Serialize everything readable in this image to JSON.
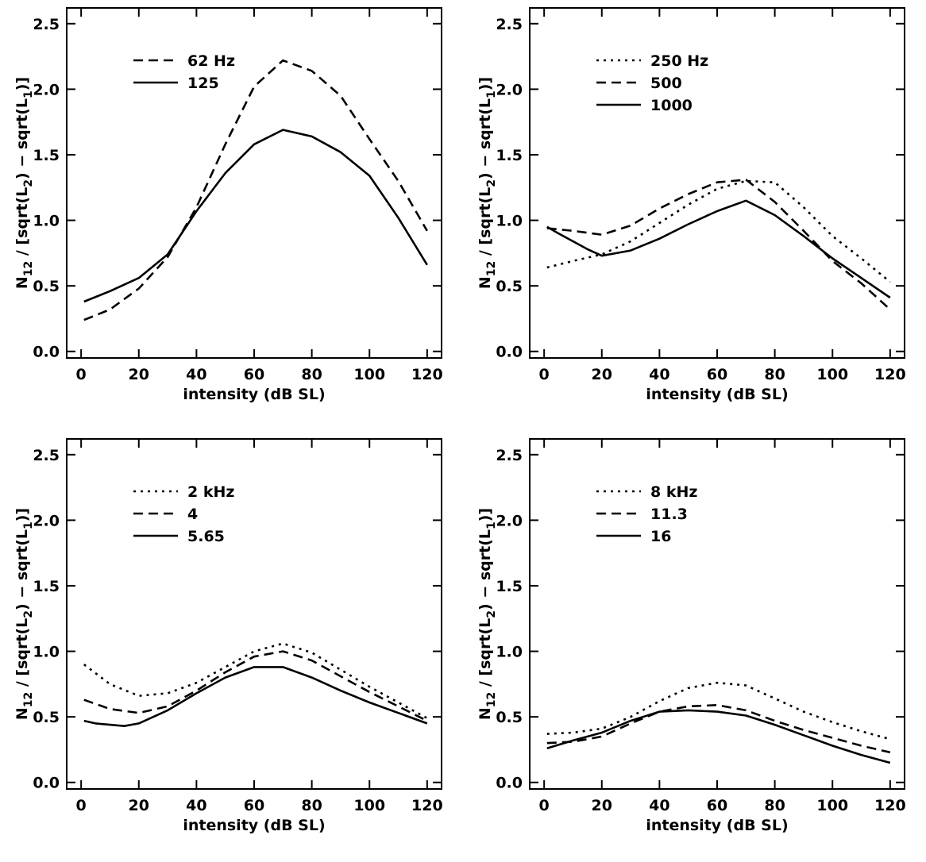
{
  "chart_data": [
    {
      "type": "line",
      "xlabel": "intensity (dB SL)",
      "ylabel_parts": [
        "N",
        "12",
        " / [sqrt(L",
        "2",
        ") − sqrt(L",
        "1",
        ")]"
      ],
      "xlim": [
        -5,
        125
      ],
      "ylim": [
        -0.05,
        2.62
      ],
      "xticks": [
        0,
        20,
        40,
        60,
        80,
        100,
        120
      ],
      "yticks": [
        0.0,
        0.5,
        1.0,
        1.5,
        2.0,
        2.5
      ],
      "yticklabels": [
        "0.0",
        "0.5",
        "1.0",
        "1.5",
        "2.0",
        "2.5"
      ],
      "series": [
        {
          "name": "62 Hz",
          "style": "dashed",
          "x": [
            1,
            10,
            20,
            30,
            40,
            50,
            60,
            70,
            80,
            90,
            100,
            110,
            120
          ],
          "y": [
            0.24,
            0.32,
            0.48,
            0.72,
            1.1,
            1.58,
            2.02,
            2.22,
            2.14,
            1.95,
            1.62,
            1.3,
            0.92
          ]
        },
        {
          "name": "125",
          "style": "solid",
          "x": [
            1,
            10,
            20,
            30,
            40,
            50,
            60,
            70,
            80,
            90,
            100,
            110,
            120
          ],
          "y": [
            0.38,
            0.46,
            0.56,
            0.74,
            1.07,
            1.36,
            1.58,
            1.69,
            1.64,
            1.52,
            1.34,
            1.02,
            0.66
          ]
        }
      ]
    },
    {
      "type": "line",
      "xlabel": "intensity (dB SL)",
      "ylabel_parts": [
        "N",
        "12",
        " / [sqrt(L",
        "2",
        ") − sqrt(L",
        "1",
        ")]"
      ],
      "xlim": [
        -5,
        125
      ],
      "ylim": [
        -0.05,
        2.62
      ],
      "xticks": [
        0,
        20,
        40,
        60,
        80,
        100,
        120
      ],
      "yticks": [
        0.0,
        0.5,
        1.0,
        1.5,
        2.0,
        2.5
      ],
      "yticklabels": [
        "0.0",
        "0.5",
        "1.0",
        "1.5",
        "2.0",
        "2.5"
      ],
      "series": [
        {
          "name": "250 Hz",
          "style": "dotted",
          "x": [
            1,
            10,
            20,
            30,
            40,
            50,
            60,
            70,
            80,
            90,
            100,
            110,
            120
          ],
          "y": [
            0.64,
            0.69,
            0.74,
            0.84,
            0.98,
            1.12,
            1.24,
            1.3,
            1.29,
            1.1,
            0.88,
            0.71,
            0.53
          ]
        },
        {
          "name": "500",
          "style": "dashed",
          "x": [
            1,
            10,
            20,
            30,
            40,
            50,
            60,
            70,
            80,
            90,
            100,
            110,
            120
          ],
          "y": [
            0.94,
            0.92,
            0.89,
            0.96,
            1.09,
            1.2,
            1.29,
            1.31,
            1.14,
            0.92,
            0.69,
            0.52,
            0.32
          ]
        },
        {
          "name": "1000",
          "style": "solid",
          "x": [
            1,
            5,
            10,
            15,
            20,
            30,
            40,
            50,
            60,
            70,
            80,
            90,
            100,
            110,
            120
          ],
          "y": [
            0.95,
            0.9,
            0.84,
            0.78,
            0.73,
            0.77,
            0.86,
            0.97,
            1.07,
            1.15,
            1.04,
            0.88,
            0.71,
            0.56,
            0.41
          ]
        }
      ]
    },
    {
      "type": "line",
      "xlabel": "intensity (dB SL)",
      "ylabel_parts": [
        "N",
        "12",
        " / [sqrt(L",
        "2",
        ") − sqrt(L",
        "1",
        ")]"
      ],
      "xlim": [
        -5,
        125
      ],
      "ylim": [
        -0.05,
        2.62
      ],
      "xticks": [
        0,
        20,
        40,
        60,
        80,
        100,
        120
      ],
      "yticks": [
        0.0,
        0.5,
        1.0,
        1.5,
        2.0,
        2.5
      ],
      "yticklabels": [
        "0.0",
        "0.5",
        "1.0",
        "1.5",
        "2.0",
        "2.5"
      ],
      "series": [
        {
          "name": "2 kHz",
          "style": "dotted",
          "x": [
            1,
            10,
            20,
            30,
            40,
            50,
            60,
            70,
            80,
            90,
            100,
            110,
            120
          ],
          "y": [
            0.9,
            0.75,
            0.66,
            0.68,
            0.76,
            0.88,
            1.0,
            1.06,
            0.99,
            0.86,
            0.73,
            0.61,
            0.49
          ]
        },
        {
          "name": "4",
          "style": "dashed",
          "x": [
            1,
            10,
            20,
            30,
            40,
            50,
            60,
            70,
            80,
            90,
            100,
            110,
            120
          ],
          "y": [
            0.63,
            0.56,
            0.53,
            0.58,
            0.7,
            0.84,
            0.96,
            1.0,
            0.93,
            0.81,
            0.69,
            0.58,
            0.47
          ]
        },
        {
          "name": "5.65",
          "style": "solid",
          "x": [
            1,
            5,
            10,
            15,
            20,
            30,
            40,
            50,
            60,
            70,
            80,
            90,
            100,
            110,
            120
          ],
          "y": [
            0.47,
            0.45,
            0.44,
            0.43,
            0.45,
            0.55,
            0.68,
            0.8,
            0.88,
            0.88,
            0.8,
            0.7,
            0.61,
            0.53,
            0.45
          ]
        }
      ]
    },
    {
      "type": "line",
      "xlabel": "intensity (dB SL)",
      "ylabel_parts": [
        "N",
        "12",
        " / [sqrt(L",
        "2",
        ") − sqrt(L",
        "1",
        ")]"
      ],
      "xlim": [
        -5,
        125
      ],
      "ylim": [
        -0.05,
        2.62
      ],
      "xticks": [
        0,
        20,
        40,
        60,
        80,
        100,
        120
      ],
      "yticks": [
        0.0,
        0.5,
        1.0,
        1.5,
        2.0,
        2.5
      ],
      "yticklabels": [
        "0.0",
        "0.5",
        "1.0",
        "1.5",
        "2.0",
        "2.5"
      ],
      "series": [
        {
          "name": "8 kHz",
          "style": "dotted",
          "x": [
            1,
            10,
            20,
            30,
            40,
            50,
            60,
            70,
            80,
            90,
            100,
            110,
            120
          ],
          "y": [
            0.37,
            0.38,
            0.41,
            0.5,
            0.62,
            0.72,
            0.76,
            0.74,
            0.64,
            0.54,
            0.46,
            0.39,
            0.33
          ]
        },
        {
          "name": "11.3",
          "style": "dashed",
          "x": [
            1,
            10,
            20,
            30,
            40,
            50,
            60,
            70,
            80,
            90,
            100,
            110,
            120
          ],
          "y": [
            0.3,
            0.31,
            0.35,
            0.45,
            0.54,
            0.58,
            0.59,
            0.55,
            0.47,
            0.4,
            0.34,
            0.28,
            0.23
          ]
        },
        {
          "name": "16",
          "style": "solid",
          "x": [
            1,
            10,
            20,
            30,
            40,
            50,
            60,
            70,
            80,
            90,
            100,
            110,
            120
          ],
          "y": [
            0.26,
            0.32,
            0.38,
            0.47,
            0.54,
            0.55,
            0.54,
            0.51,
            0.44,
            0.36,
            0.28,
            0.21,
            0.15
          ]
        }
      ]
    }
  ]
}
